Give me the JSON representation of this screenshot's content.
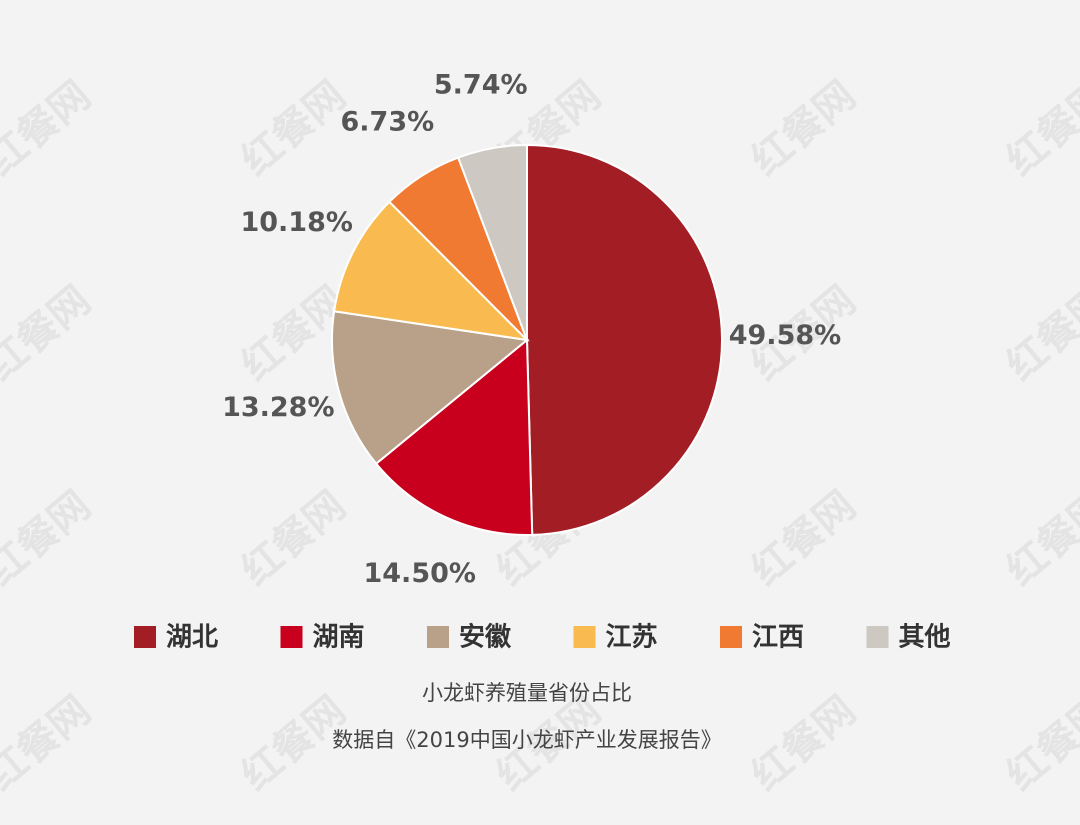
{
  "chart_data": {
    "type": "pie",
    "categories": [
      "湖北",
      "湖南",
      "安徽",
      "江苏",
      "江西",
      "其他"
    ],
    "values": [
      49.58,
      14.5,
      13.28,
      10.18,
      6.73,
      5.74
    ],
    "value_labels": [
      "49.58%",
      "14.50%",
      "13.28%",
      "10.18%",
      "6.73%",
      "5.74%"
    ],
    "colors": [
      "#a31d24",
      "#c8001e",
      "#b9a089",
      "#f9bb4f",
      "#f07a32",
      "#cdc9c2"
    ],
    "caption": "小龙虾养殖量省份占比",
    "source": "数据自《2019中国小龙虾产业发展报告》",
    "watermark": "红餐网",
    "legend": "bottom"
  }
}
